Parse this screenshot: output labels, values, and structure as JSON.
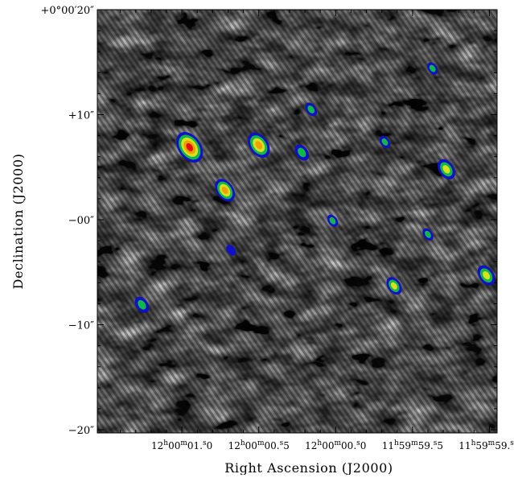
{
  "chart_data": {
    "type": "heatmap",
    "xlabel": "Right Ascension (J2000)",
    "ylabel": "Declination (J2000)",
    "x_ticks": [
      {
        "value": 1.0,
        "h": "12",
        "m": "00",
        "s": "01.0"
      },
      {
        "value": 0.5,
        "h": "12",
        "m": "00",
        "s": "00.5"
      },
      {
        "value": 0.0,
        "h": "12",
        "m": "00",
        "s": "00.0"
      },
      {
        "value": -0.5,
        "h": "11",
        "m": "59",
        "s": "59.5"
      },
      {
        "value": -1.0,
        "h": "11",
        "m": "59",
        "s": "59.0"
      }
    ],
    "y_ticks": [
      {
        "value": 20,
        "label": "+0°00′20″"
      },
      {
        "value": 10,
        "label": "+10″"
      },
      {
        "value": 0,
        "label": "−00″"
      },
      {
        "value": -10,
        "label": "−10″"
      },
      {
        "value": -20,
        "label": "−20″"
      }
    ],
    "xlim": [
      1.55,
      -1.05
    ],
    "ylim": [
      -20.3,
      20.0
    ],
    "background": {
      "base_color": "#0d0d0d",
      "texture": "grayscale noise with diagonal stripe pattern"
    },
    "contour_colors": [
      "#1010c8",
      "#10b84a",
      "#d8e020",
      "#f0a000",
      "#e01010"
    ],
    "sources": [
      {
        "ra": 0.95,
        "dec": 6.9,
        "size": 1.0
      },
      {
        "ra": 0.5,
        "dec": 7.1,
        "size": 0.8
      },
      {
        "ra": 0.72,
        "dec": 2.8,
        "size": 0.7
      },
      {
        "ra": -0.72,
        "dec": 4.8,
        "size": 0.6
      },
      {
        "ra": -0.98,
        "dec": -5.3,
        "size": 0.6
      },
      {
        "ra": -0.38,
        "dec": -6.3,
        "size": 0.5
      },
      {
        "ra": 1.26,
        "dec": -8.1,
        "size": 0.45
      },
      {
        "ra": 0.22,
        "dec": 6.4,
        "size": 0.45
      },
      {
        "ra": 0.16,
        "dec": 10.5,
        "size": 0.35
      },
      {
        "ra": -0.32,
        "dec": 7.4,
        "size": 0.3
      },
      {
        "ra": -0.6,
        "dec": -1.4,
        "size": 0.3
      },
      {
        "ra": 0.02,
        "dec": -0.1,
        "size": 0.3
      },
      {
        "ra": -0.63,
        "dec": 14.4,
        "size": 0.3
      },
      {
        "ra": 0.68,
        "dec": -2.9,
        "size": 0.25
      }
    ]
  }
}
